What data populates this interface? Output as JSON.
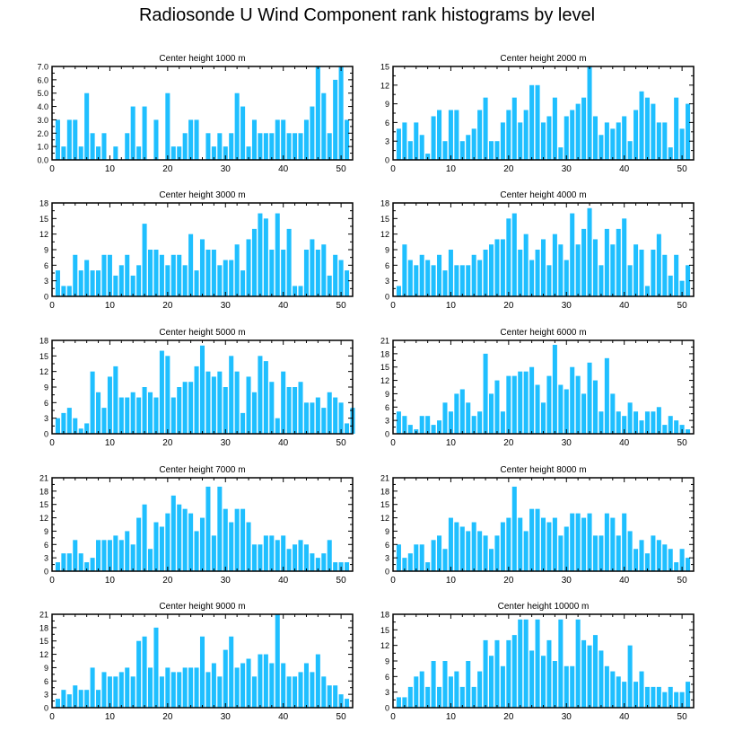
{
  "title": "Radiosonde U Wind Component rank histograms by level",
  "bar_color": "#1fbfff",
  "chart_data": [
    {
      "type": "bar",
      "title": "Center height 1000 m",
      "x_ticks": [
        0,
        10,
        20,
        30,
        40,
        50
      ],
      "y_ticks": [
        "0.0",
        "1.0",
        "2.0",
        "3.0",
        "4.0",
        "5.0",
        "6.0",
        "7.0"
      ],
      "ylim": [
        0,
        7
      ],
      "values": [
        3,
        1,
        3,
        3,
        1,
        5,
        2,
        1,
        2,
        0,
        1,
        0,
        2,
        4,
        1,
        4,
        0,
        3,
        0,
        5,
        1,
        1,
        2,
        3,
        3,
        0,
        2,
        1,
        2,
        1,
        2,
        5,
        4,
        1,
        3,
        2,
        2,
        2,
        3,
        3,
        2,
        2,
        2,
        3,
        4,
        7,
        5,
        2,
        6,
        7,
        3
      ]
    },
    {
      "type": "bar",
      "title": "Center height 2000 m",
      "x_ticks": [
        0,
        10,
        20,
        30,
        40,
        50
      ],
      "y_ticks": [
        "0",
        "3",
        "6",
        "9",
        "12",
        "15"
      ],
      "ylim": [
        0,
        15
      ],
      "values": [
        5,
        6,
        3,
        6,
        4,
        1,
        7,
        8,
        3,
        8,
        8,
        3,
        4,
        5,
        8,
        10,
        3,
        3,
        6,
        8,
        10,
        6,
        8,
        12,
        12,
        6,
        7,
        10,
        2,
        7,
        8,
        9,
        10,
        15,
        7,
        4,
        6,
        5,
        6,
        7,
        3,
        8,
        11,
        10,
        9,
        6,
        6,
        2,
        10,
        5,
        9
      ]
    },
    {
      "type": "bar",
      "title": "Center height 3000 m",
      "x_ticks": [
        0,
        10,
        20,
        30,
        40,
        50
      ],
      "y_ticks": [
        "0",
        "3",
        "6",
        "9",
        "12",
        "15",
        "18"
      ],
      "ylim": [
        0,
        18
      ],
      "values": [
        5,
        2,
        2,
        8,
        5,
        7,
        5,
        5,
        8,
        8,
        4,
        6,
        8,
        4,
        6,
        14,
        9,
        9,
        8,
        6,
        8,
        8,
        6,
        12,
        5,
        11,
        9,
        9,
        6,
        7,
        7,
        10,
        5,
        11,
        13,
        16,
        15,
        9,
        16,
        9,
        13,
        2,
        2,
        9,
        11,
        9,
        10,
        4,
        8,
        7,
        5
      ]
    },
    {
      "type": "bar",
      "title": "Center height 4000 m",
      "x_ticks": [
        0,
        10,
        20,
        30,
        40,
        50
      ],
      "y_ticks": [
        "0",
        "3",
        "6",
        "9",
        "12",
        "15",
        "18"
      ],
      "ylim": [
        0,
        18
      ],
      "values": [
        2,
        10,
        7,
        6,
        8,
        7,
        6,
        8,
        5,
        9,
        6,
        6,
        6,
        8,
        7,
        9,
        10,
        11,
        11,
        15,
        16,
        9,
        12,
        7,
        9,
        11,
        6,
        12,
        10,
        7,
        16,
        10,
        13,
        17,
        11,
        6,
        13,
        10,
        13,
        15,
        6,
        10,
        9,
        2,
        9,
        12,
        8,
        4,
        8,
        3,
        6
      ]
    },
    {
      "type": "bar",
      "title": "Center height 5000 m",
      "x_ticks": [
        0,
        10,
        20,
        30,
        40,
        50
      ],
      "y_ticks": [
        "0",
        "3",
        "6",
        "9",
        "12",
        "15",
        "18"
      ],
      "ylim": [
        0,
        18
      ],
      "values": [
        3,
        4,
        5,
        3,
        1,
        2,
        12,
        8,
        5,
        11,
        13,
        7,
        7,
        8,
        7,
        9,
        8,
        7,
        16,
        15,
        7,
        9,
        10,
        10,
        13,
        17,
        12,
        11,
        12,
        9,
        15,
        12,
        4,
        11,
        8,
        15,
        14,
        10,
        3,
        12,
        9,
        9,
        10,
        6,
        6,
        7,
        5,
        8,
        7,
        6,
        2,
        5
      ]
    },
    {
      "type": "bar",
      "title": "Center height 6000 m",
      "x_ticks": [
        0,
        10,
        20,
        30,
        40,
        50
      ],
      "y_ticks": [
        "0",
        "3",
        "6",
        "9",
        "12",
        "15",
        "18",
        "21"
      ],
      "ylim": [
        0,
        21
      ],
      "values": [
        5,
        4,
        2,
        1,
        4,
        4,
        2,
        3,
        7,
        5,
        9,
        10,
        7,
        4,
        5,
        18,
        9,
        12,
        5,
        13,
        13,
        14,
        14,
        15,
        11,
        7,
        13,
        20,
        11,
        10,
        15,
        13,
        9,
        16,
        12,
        5,
        17,
        9,
        5,
        4,
        7,
        5,
        3,
        5,
        5,
        6,
        2,
        4,
        3,
        2,
        1
      ]
    },
    {
      "type": "bar",
      "title": "Center height 7000 m",
      "x_ticks": [
        0,
        10,
        20,
        30,
        40,
        50
      ],
      "y_ticks": [
        "0",
        "3",
        "6",
        "9",
        "12",
        "15",
        "18",
        "21"
      ],
      "ylim": [
        0,
        21
      ],
      "values": [
        2,
        4,
        4,
        7,
        4,
        2,
        3,
        7,
        7,
        7,
        8,
        7,
        9,
        6,
        12,
        15,
        5,
        11,
        10,
        13,
        17,
        15,
        14,
        13,
        9,
        12,
        19,
        8,
        19,
        14,
        11,
        14,
        14,
        11,
        6,
        6,
        8,
        8,
        7,
        8,
        5,
        6,
        7,
        6,
        4,
        3,
        4,
        7,
        2,
        2,
        2
      ]
    },
    {
      "type": "bar",
      "title": "Center height 8000 m",
      "x_ticks": [
        0,
        10,
        20,
        30,
        40,
        50
      ],
      "y_ticks": [
        "0",
        "3",
        "6",
        "9",
        "12",
        "15",
        "18",
        "21"
      ],
      "ylim": [
        0,
        21
      ],
      "values": [
        6,
        3,
        4,
        6,
        6,
        2,
        7,
        8,
        5,
        12,
        11,
        10,
        9,
        11,
        9,
        8,
        5,
        8,
        11,
        12,
        19,
        12,
        9,
        14,
        14,
        12,
        11,
        12,
        8,
        10,
        13,
        13,
        12,
        13,
        8,
        8,
        13,
        12,
        8,
        13,
        9,
        5,
        7,
        4,
        8,
        7,
        6,
        5,
        2,
        5,
        3
      ]
    },
    {
      "type": "bar",
      "title": "Center height 9000 m",
      "x_ticks": [
        0,
        10,
        20,
        30,
        40,
        50
      ],
      "y_ticks": [
        "0",
        "3",
        "6",
        "9",
        "12",
        "15",
        "18",
        "21"
      ],
      "ylim": [
        0,
        21
      ],
      "values": [
        2,
        4,
        3,
        5,
        4,
        4,
        9,
        4,
        8,
        7,
        7,
        8,
        9,
        7,
        15,
        16,
        9,
        18,
        7,
        9,
        8,
        8,
        9,
        9,
        9,
        16,
        8,
        10,
        7,
        13,
        16,
        9,
        10,
        11,
        7,
        12,
        12,
        10,
        21,
        10,
        7,
        7,
        8,
        10,
        8,
        12,
        7,
        5,
        5,
        3,
        2
      ]
    },
    {
      "type": "bar",
      "title": "Center height 10000 m",
      "x_ticks": [
        0,
        10,
        20,
        30,
        40,
        50
      ],
      "y_ticks": [
        "0",
        "3",
        "6",
        "9",
        "12",
        "15",
        "18"
      ],
      "ylim": [
        0,
        18
      ],
      "values": [
        2,
        2,
        4,
        6,
        7,
        4,
        9,
        4,
        9,
        6,
        7,
        4,
        9,
        4,
        7,
        13,
        10,
        13,
        8,
        13,
        14,
        17,
        17,
        11,
        17,
        10,
        13,
        9,
        17,
        8,
        8,
        17,
        13,
        12,
        14,
        11,
        8,
        7,
        6,
        5,
        12,
        5,
        7,
        4,
        4,
        4,
        3,
        4,
        3,
        3,
        5
      ]
    }
  ]
}
